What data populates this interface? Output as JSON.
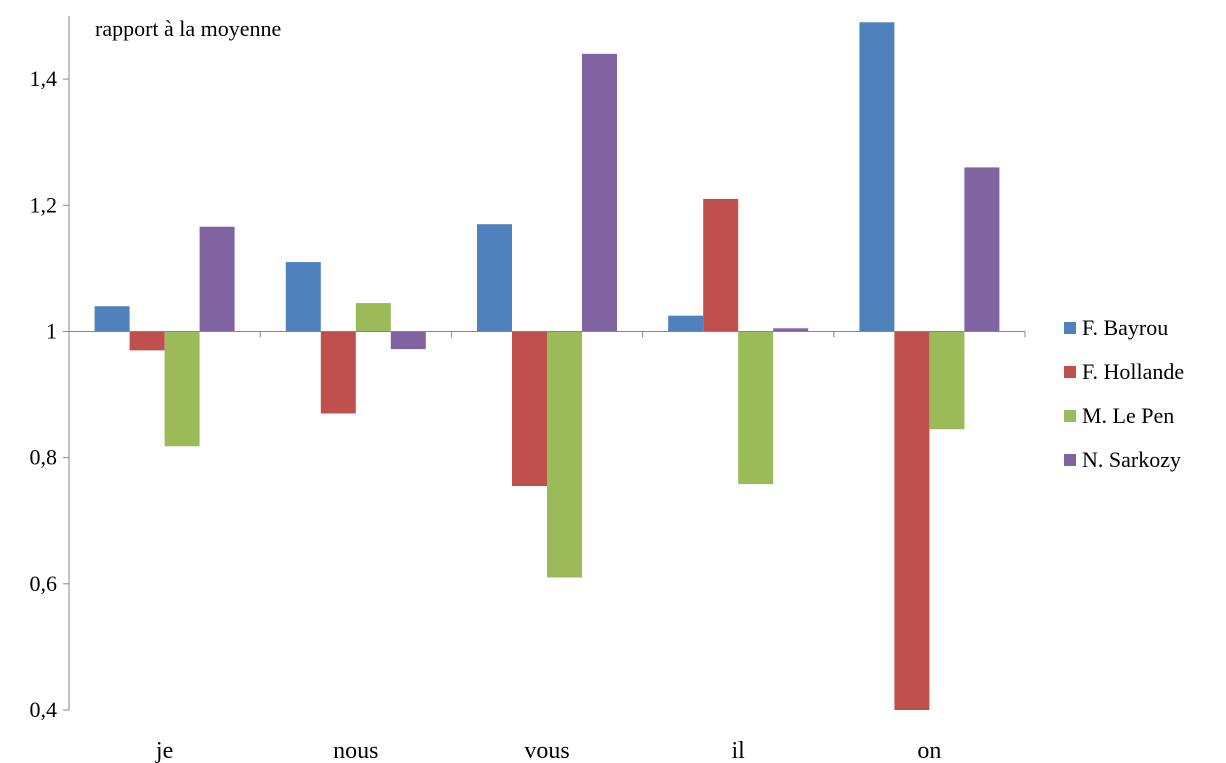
{
  "chart_data": {
    "type": "bar",
    "annotation": "rapport à la moyenne",
    "categories": [
      "je",
      "nous",
      "vous",
      "il",
      "on"
    ],
    "baseline": 1,
    "ylim": [
      0.4,
      1.5
    ],
    "yticks": [
      "0,4",
      "0,6",
      "0,8",
      "1",
      "1,2",
      "1,4"
    ],
    "ytick_values": [
      0.4,
      0.6,
      0.8,
      1,
      1.2,
      1.4
    ],
    "legend_position": "right",
    "grid": false,
    "series": [
      {
        "name": "F. Bayrou",
        "color": "#4F81BD",
        "values": [
          1.04,
          1.11,
          1.17,
          1.025,
          1.49
        ]
      },
      {
        "name": "F. Hollande",
        "color": "#C0504D",
        "values": [
          0.97,
          0.87,
          0.755,
          1.21,
          0.4
        ]
      },
      {
        "name": "M. Le Pen",
        "color": "#9BBB59",
        "values": [
          0.818,
          1.045,
          0.61,
          0.758,
          0.845
        ]
      },
      {
        "name": "N. Sarkozy",
        "color": "#8064A2",
        "values": [
          1.166,
          0.972,
          1.44,
          1.005,
          1.26
        ]
      }
    ]
  }
}
